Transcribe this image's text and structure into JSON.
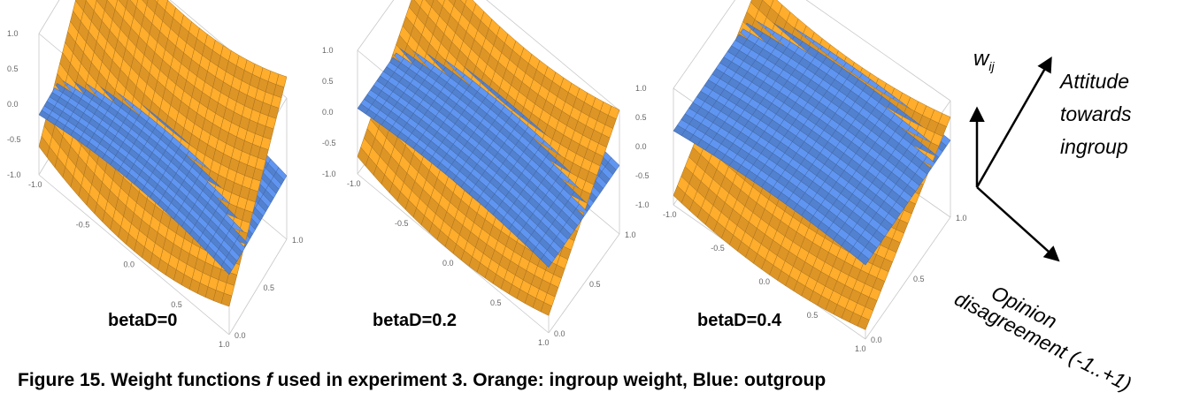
{
  "panels": [
    {
      "title": "betaD=0",
      "beta": 0.0
    },
    {
      "title": "betaD=0.2",
      "beta": 0.2
    },
    {
      "title": "betaD=0.4",
      "beta": 0.4
    }
  ],
  "chart_data": {
    "type": "surface",
    "z_ticks": [
      "1.0",
      "0.5",
      "0.0",
      "-0.5",
      "-1.0"
    ],
    "x_ticks": [
      "-1.0",
      "-0.5",
      "0.0",
      "0.5",
      "1.0"
    ],
    "y_ticks": [
      "0.0",
      "0.5",
      "1.0"
    ],
    "surfaces": [
      {
        "label": "ingroup weight",
        "color": "#f5a52a"
      },
      {
        "label": "outgroup",
        "color": "#5b8fe6"
      }
    ]
  },
  "diagram": {
    "w_label": "w",
    "w_sub": "ij",
    "attitude_lines": [
      "Attitude",
      "towards",
      "ingroup"
    ],
    "opinion_line1": "Opinion",
    "opinion_line2": "disagreement  (-1..+1)"
  },
  "caption": {
    "prefix": "Figure 15. Weight functions ",
    "symbol": "f",
    "suffix": " used in experiment 3. Orange: ingroup weight, Blue: outgroup"
  }
}
